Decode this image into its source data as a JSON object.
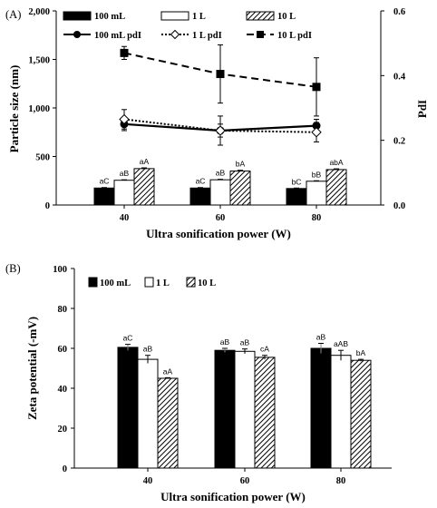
{
  "chart_data": [
    {
      "panel": "(A)",
      "type": "bar+line",
      "xlabel": "Ultra sonification power (W)",
      "ylabel": "Particle size (nm)",
      "ylabel_right": "PdI",
      "categories": [
        "40",
        "60",
        "80"
      ],
      "ylim": [
        0,
        2000
      ],
      "yticks": [
        "0",
        "500",
        "1,000",
        "1,500",
        "2,000"
      ],
      "ylim_right": [
        0,
        0.6
      ],
      "yticks_right": [
        "0.0",
        "0.2",
        "0.4",
        "0.6"
      ],
      "legend_position": "top",
      "bar_series": [
        {
          "name": "100 mL",
          "values": [
            175,
            175,
            170
          ],
          "errors": [
            5,
            5,
            5
          ],
          "labels": [
            "aC",
            "aC",
            "bC"
          ],
          "fill": "black"
        },
        {
          "name": "1 L",
          "values": [
            255,
            260,
            245
          ],
          "errors": [
            5,
            5,
            5
          ],
          "labels": [
            "aB",
            "aB",
            "bB"
          ],
          "fill": "white"
        },
        {
          "name": "10 L",
          "values": [
            375,
            350,
            365
          ],
          "errors": [
            8,
            8,
            8
          ],
          "labels": [
            "aA",
            "bA",
            "abA"
          ],
          "fill": "hatch"
        }
      ],
      "line_series": [
        {
          "name": "100 mL  pdI",
          "values": [
            0.25,
            0.23,
            0.245
          ],
          "errors": [
            0.02,
            0.02,
            0.02
          ],
          "marker": "circle",
          "line": "solid"
        },
        {
          "name": "1 L  pdI",
          "values": [
            0.265,
            0.23,
            0.225
          ],
          "errors": [
            0.03,
            0.045,
            0.03
          ],
          "marker": "diamond",
          "line": "dotted"
        },
        {
          "name": "10 L  pdI",
          "values": [
            0.47,
            0.405,
            0.365
          ],
          "errors": [
            0.02,
            0.09,
            0.09
          ],
          "marker": "square",
          "line": "dashed"
        }
      ]
    },
    {
      "panel": "(B)",
      "type": "bar",
      "xlabel": "Ultra sonification power (W)",
      "ylabel": "Zeta potential (-mV)",
      "categories": [
        "40",
        "60",
        "80"
      ],
      "ylim": [
        0,
        100
      ],
      "yticks": [
        "0",
        "20",
        "40",
        "60",
        "80",
        "100"
      ],
      "legend_position": "top-left",
      "series": [
        {
          "name": "100 mL",
          "values": [
            60.5,
            59,
            60
          ],
          "errors": [
            1.5,
            1,
            2.5
          ],
          "labels": [
            "aC",
            "aB",
            "aB"
          ],
          "fill": "black"
        },
        {
          "name": "1 L",
          "values": [
            54.5,
            58.5,
            56.5
          ],
          "errors": [
            2,
            1.2,
            2.5
          ],
          "labels": [
            "aB",
            "aB",
            "aAB"
          ],
          "fill": "white"
        },
        {
          "name": "10 L",
          "values": [
            45,
            55.5,
            54
          ],
          "errors": [
            0.3,
            1,
            0.5
          ],
          "labels": [
            "aA",
            "cA",
            "bA"
          ],
          "fill": "hatch"
        }
      ]
    }
  ]
}
